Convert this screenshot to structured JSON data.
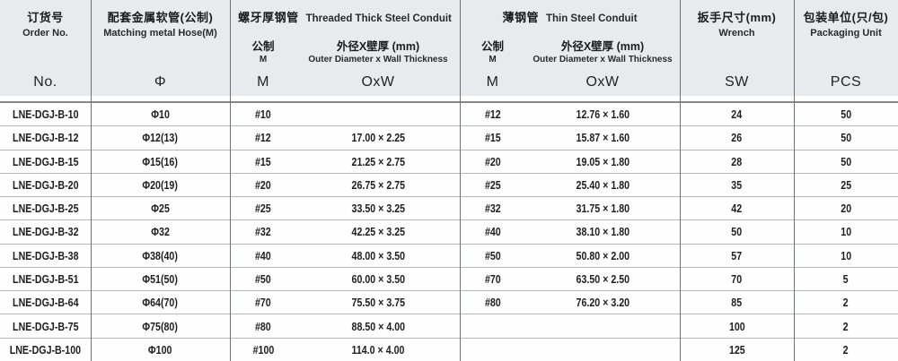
{
  "table": {
    "header": {
      "order": {
        "cn": "订货号",
        "en": "Order No.",
        "symbol": "No."
      },
      "hose": {
        "cn": "配套金属软管(公制)",
        "en": "Matching metal Hose(M)",
        "symbol": "Φ"
      },
      "thick": {
        "title_cn": "螺牙厚钢管",
        "title_en": "Threaded Thick Steel Conduit",
        "metric_cn": "公制",
        "metric_en": "M",
        "metric_symbol": "M",
        "size_cn": "外径X壁厚 (mm)",
        "size_en": "Outer Diameter x Wall Thickness",
        "size_symbol": "OxW"
      },
      "thin": {
        "title_cn": "薄钢管",
        "title_en": "Thin Steel Conduit",
        "metric_cn": "公制",
        "metric_en": "M",
        "metric_symbol": "M",
        "size_cn": "外径X壁厚 (mm)",
        "size_en": "Outer Diameter x Wall Thickness",
        "size_symbol": "OxW"
      },
      "wrench": {
        "cn": "扳手尺寸(mm)",
        "en": "Wrench",
        "symbol": "SW"
      },
      "packaging": {
        "cn": "包装单位(只/包)",
        "en": "Packaging Unit",
        "symbol": "PCS"
      }
    },
    "rows": [
      {
        "order_no": "LNE-DGJ-B-10",
        "hose": "Φ10",
        "thick_m": "#10",
        "thick_oxw": "",
        "thin_m": "#12",
        "thin_oxw": "12.76 × 1.60",
        "wrench_sw": "24",
        "packaging_pcs": "50"
      },
      {
        "order_no": "LNE-DGJ-B-12",
        "hose": "Φ12(13)",
        "thick_m": "#12",
        "thick_oxw": "17.00 × 2.25",
        "thin_m": "#15",
        "thin_oxw": "15.87 × 1.60",
        "wrench_sw": "26",
        "packaging_pcs": "50"
      },
      {
        "order_no": "LNE-DGJ-B-15",
        "hose": "Φ15(16)",
        "thick_m": "#15",
        "thick_oxw": "21.25 × 2.75",
        "thin_m": "#20",
        "thin_oxw": "19.05 × 1.80",
        "wrench_sw": "28",
        "packaging_pcs": "50"
      },
      {
        "order_no": "LNE-DGJ-B-20",
        "hose": "Φ20(19)",
        "thick_m": "#20",
        "thick_oxw": "26.75 × 2.75",
        "thin_m": "#25",
        "thin_oxw": "25.40 × 1.80",
        "wrench_sw": "35",
        "packaging_pcs": "25"
      },
      {
        "order_no": "LNE-DGJ-B-25",
        "hose": "Φ25",
        "thick_m": "#25",
        "thick_oxw": "33.50 × 3.25",
        "thin_m": "#32",
        "thin_oxw": "31.75 × 1.80",
        "wrench_sw": "42",
        "packaging_pcs": "20"
      },
      {
        "order_no": "LNE-DGJ-B-32",
        "hose": "Φ32",
        "thick_m": "#32",
        "thick_oxw": "42.25 × 3.25",
        "thin_m": "#40",
        "thin_oxw": "38.10 × 1.80",
        "wrench_sw": "50",
        "packaging_pcs": "10"
      },
      {
        "order_no": "LNE-DGJ-B-38",
        "hose": "Φ38(40)",
        "thick_m": "#40",
        "thick_oxw": "48.00 × 3.50",
        "thin_m": "#50",
        "thin_oxw": "50.80 × 2.00",
        "wrench_sw": "57",
        "packaging_pcs": "10"
      },
      {
        "order_no": "LNE-DGJ-B-51",
        "hose": "Φ51(50)",
        "thick_m": "#50",
        "thick_oxw": "60.00 × 3.50",
        "thin_m": "#70",
        "thin_oxw": "63.50 × 2.50",
        "wrench_sw": "70",
        "packaging_pcs": "5"
      },
      {
        "order_no": "LNE-DGJ-B-64",
        "hose": "Φ64(70)",
        "thick_m": "#70",
        "thick_oxw": "75.50 × 3.75",
        "thin_m": "#80",
        "thin_oxw": "76.20 × 3.20",
        "wrench_sw": "85",
        "packaging_pcs": "2"
      },
      {
        "order_no": "LNE-DGJ-B-75",
        "hose": "Φ75(80)",
        "thick_m": "#80",
        "thick_oxw": "88.50 × 4.00",
        "thin_m": "",
        "thin_oxw": "",
        "wrench_sw": "100",
        "packaging_pcs": "2"
      },
      {
        "order_no": "LNE-DGJ-B-100",
        "hose": "Φ100",
        "thick_m": "#100",
        "thick_oxw": "114.0 × 4.00",
        "thin_m": "",
        "thin_oxw": "",
        "wrench_sw": "125",
        "packaging_pcs": "2"
      }
    ],
    "colors": {
      "header_bg": "#e8eaed",
      "row_bg": "#fefefe",
      "grid_line": "#6e7277",
      "row_line": "#b4b8be",
      "header_rule": "#82878f",
      "text": "#1c1c1e"
    }
  }
}
